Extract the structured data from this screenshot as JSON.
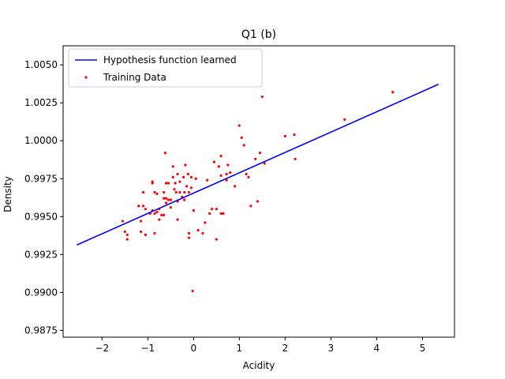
{
  "chart_data": {
    "type": "scatter",
    "title": "Q1 (b)",
    "xlabel": "Acidity",
    "ylabel": "Density",
    "xlim": [
      -2.85,
      5.7
    ],
    "ylim": [
      0.98705,
      1.00626
    ],
    "xticks": [
      -2,
      -1,
      0,
      1,
      2,
      3,
      4,
      5
    ],
    "yticks": [
      0.9875,
      0.99,
      0.9925,
      0.995,
      0.9975,
      1.0,
      1.0025,
      1.005
    ],
    "ytick_labels": [
      "0.9875",
      "0.9900",
      "0.9925",
      "0.9950",
      "0.9975",
      "1.0000",
      "1.0025",
      "1.0050"
    ],
    "legend_position": "upper-left",
    "grid": false,
    "series": [
      {
        "name": "Hypothesis function learned",
        "kind": "line",
        "color": "#0000ff",
        "x": [
          -2.55,
          5.35
        ],
        "y": [
          0.99313,
          1.00372
        ]
      },
      {
        "name": "Training Data",
        "kind": "scatter",
        "color": "#ff0000",
        "points": [
          [
            -1.55,
            0.9947
          ],
          [
            -1.5,
            0.994
          ],
          [
            -1.45,
            0.9938
          ],
          [
            -1.45,
            0.9935
          ],
          [
            -1.2,
            0.9957
          ],
          [
            -1.15,
            0.9947
          ],
          [
            -1.15,
            0.994
          ],
          [
            -1.1,
            0.9966
          ],
          [
            -1.1,
            0.9957
          ],
          [
            -1.05,
            0.9955
          ],
          [
            -1.05,
            0.9938
          ],
          [
            -0.95,
            0.9952
          ],
          [
            -0.9,
            0.9973
          ],
          [
            -0.9,
            0.9972
          ],
          [
            -0.9,
            0.9954
          ],
          [
            -0.85,
            0.9966
          ],
          [
            -0.85,
            0.9952
          ],
          [
            -0.85,
            0.9939
          ],
          [
            -0.8,
            0.9965
          ],
          [
            -0.8,
            0.9953
          ],
          [
            -0.75,
            0.9948
          ],
          [
            -0.75,
            0.9955
          ],
          [
            -0.7,
            0.9951
          ],
          [
            -0.65,
            0.9966
          ],
          [
            -0.65,
            0.9962
          ],
          [
            -0.65,
            0.9951
          ],
          [
            -0.62,
            0.9992
          ],
          [
            -0.6,
            0.9972
          ],
          [
            -0.6,
            0.9962
          ],
          [
            -0.6,
            0.9959
          ],
          [
            -0.55,
            0.9972
          ],
          [
            -0.55,
            0.9961
          ],
          [
            -0.5,
            0.9956
          ],
          [
            -0.5,
            0.9961
          ],
          [
            -0.45,
            0.9983
          ],
          [
            -0.45,
            0.9976
          ],
          [
            -0.42,
            0.9968
          ],
          [
            -0.4,
            0.9972
          ],
          [
            -0.38,
            0.9966
          ],
          [
            -0.35,
            0.996
          ],
          [
            -0.35,
            0.9948
          ],
          [
            -0.35,
            0.9978
          ],
          [
            -0.3,
            0.9973
          ],
          [
            -0.3,
            0.9966
          ],
          [
            -0.25,
            0.9963
          ],
          [
            -0.22,
            0.9976
          ],
          [
            -0.2,
            0.9966
          ],
          [
            -0.2,
            0.9961
          ],
          [
            -0.18,
            0.9984
          ],
          [
            -0.15,
            0.997
          ],
          [
            -0.12,
            0.9978
          ],
          [
            -0.1,
            0.9966
          ],
          [
            -0.1,
            0.9939
          ],
          [
            -0.1,
            0.9936
          ],
          [
            -0.05,
            0.9976
          ],
          [
            -0.05,
            0.9969
          ],
          [
            -0.02,
            0.9901
          ],
          [
            0.0,
            0.9954
          ],
          [
            0.05,
            0.9975
          ],
          [
            0.1,
            0.9941
          ],
          [
            0.2,
            0.9939
          ],
          [
            0.25,
            0.9946
          ],
          [
            0.3,
            0.9974
          ],
          [
            0.35,
            0.9952
          ],
          [
            0.4,
            0.9955
          ],
          [
            0.45,
            0.9986
          ],
          [
            0.5,
            0.9955
          ],
          [
            0.5,
            0.9935
          ],
          [
            0.55,
            0.9983
          ],
          [
            0.6,
            0.999
          ],
          [
            0.6,
            0.9977
          ],
          [
            0.6,
            0.9952
          ],
          [
            0.65,
            0.9952
          ],
          [
            0.72,
            0.9978
          ],
          [
            0.72,
            0.9974
          ],
          [
            0.75,
            0.9984
          ],
          [
            0.8,
            0.9979
          ],
          [
            0.9,
            0.997
          ],
          [
            1.0,
            1.001
          ],
          [
            1.05,
            1.0002
          ],
          [
            1.1,
            0.9997
          ],
          [
            1.15,
            0.9978
          ],
          [
            1.2,
            0.9976
          ],
          [
            1.25,
            0.9957
          ],
          [
            1.35,
            0.9988
          ],
          [
            1.4,
            0.996
          ],
          [
            1.45,
            0.9992
          ],
          [
            1.5,
            1.0029
          ],
          [
            1.55,
            0.9985
          ],
          [
            2.0,
            1.0003
          ],
          [
            2.2,
            1.0004
          ],
          [
            2.22,
            0.9988
          ],
          [
            3.3,
            1.0014
          ],
          [
            4.35,
            1.0032
          ]
        ]
      }
    ]
  }
}
